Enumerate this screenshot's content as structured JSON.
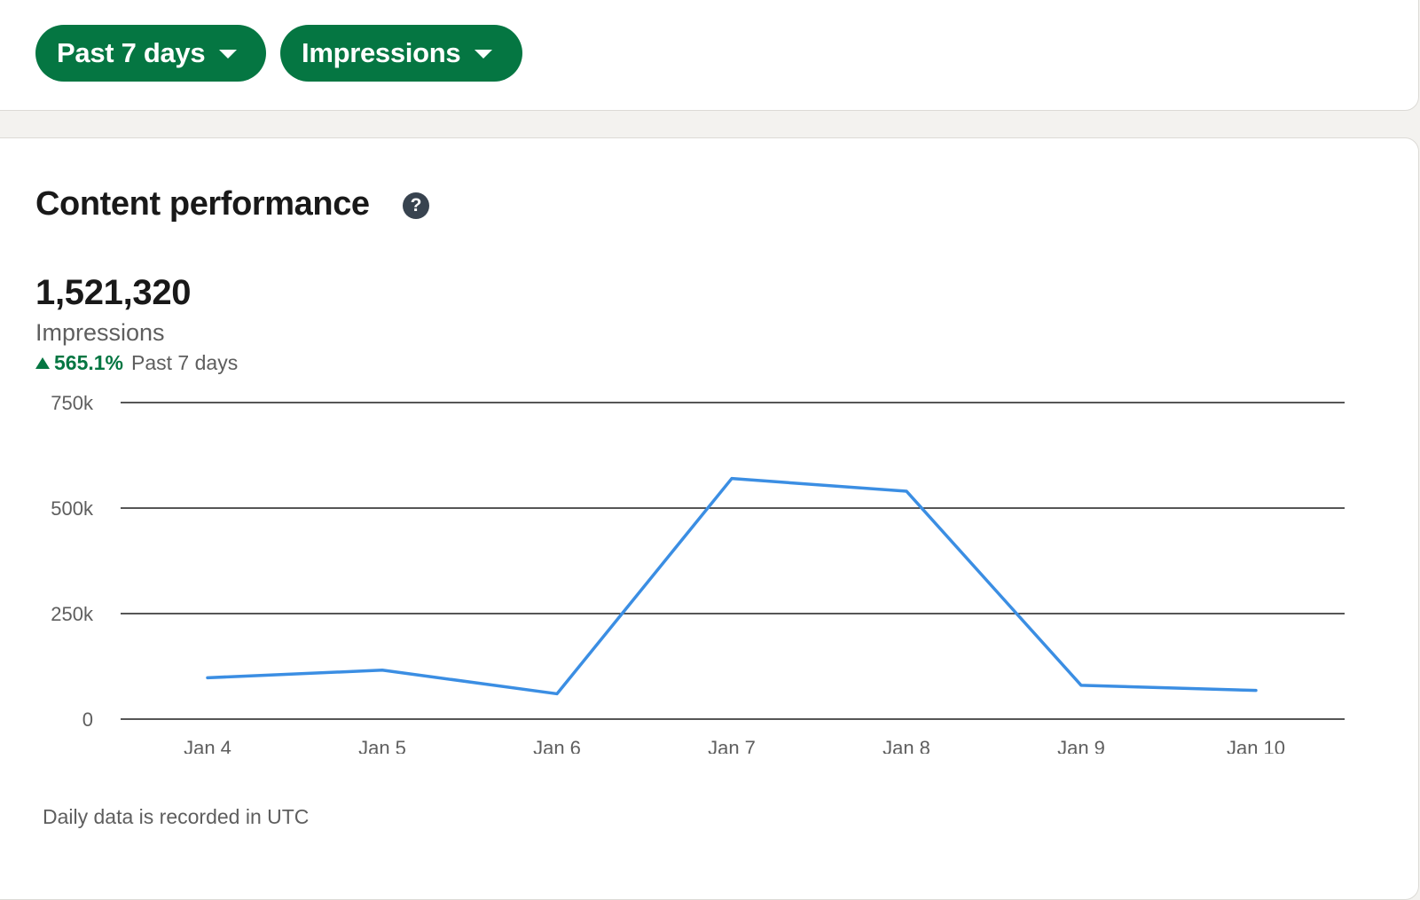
{
  "filters": {
    "range_label": "Past 7 days",
    "metric_label": "Impressions"
  },
  "card": {
    "title": "Content performance",
    "help_icon_glyph": "?",
    "total_value": "1,521,320",
    "metric_name": "Impressions",
    "change_percent": "565.1%",
    "change_period": "Past 7 days",
    "footnote": "Daily data is recorded in UTC"
  },
  "colors": {
    "accent_green": "#057642",
    "line_blue": "#3b8ee3",
    "grid": "#1f1f1f"
  },
  "chart_data": {
    "type": "line",
    "title": "",
    "xlabel": "",
    "ylabel": "",
    "categories": [
      "Jan 4",
      "Jan 5",
      "Jan 6",
      "Jan 7",
      "Jan 8",
      "Jan 9",
      "Jan 10"
    ],
    "series": [
      {
        "values": [
          98000,
          116000,
          60000,
          570000,
          540000,
          80000,
          68000
        ]
      }
    ],
    "ylim": [
      0,
      750000
    ],
    "yticks": [
      0,
      250000,
      500000,
      750000
    ],
    "ytick_labels": [
      "0",
      "250k",
      "500k",
      "750k"
    ],
    "grid": true,
    "legend": "none"
  }
}
